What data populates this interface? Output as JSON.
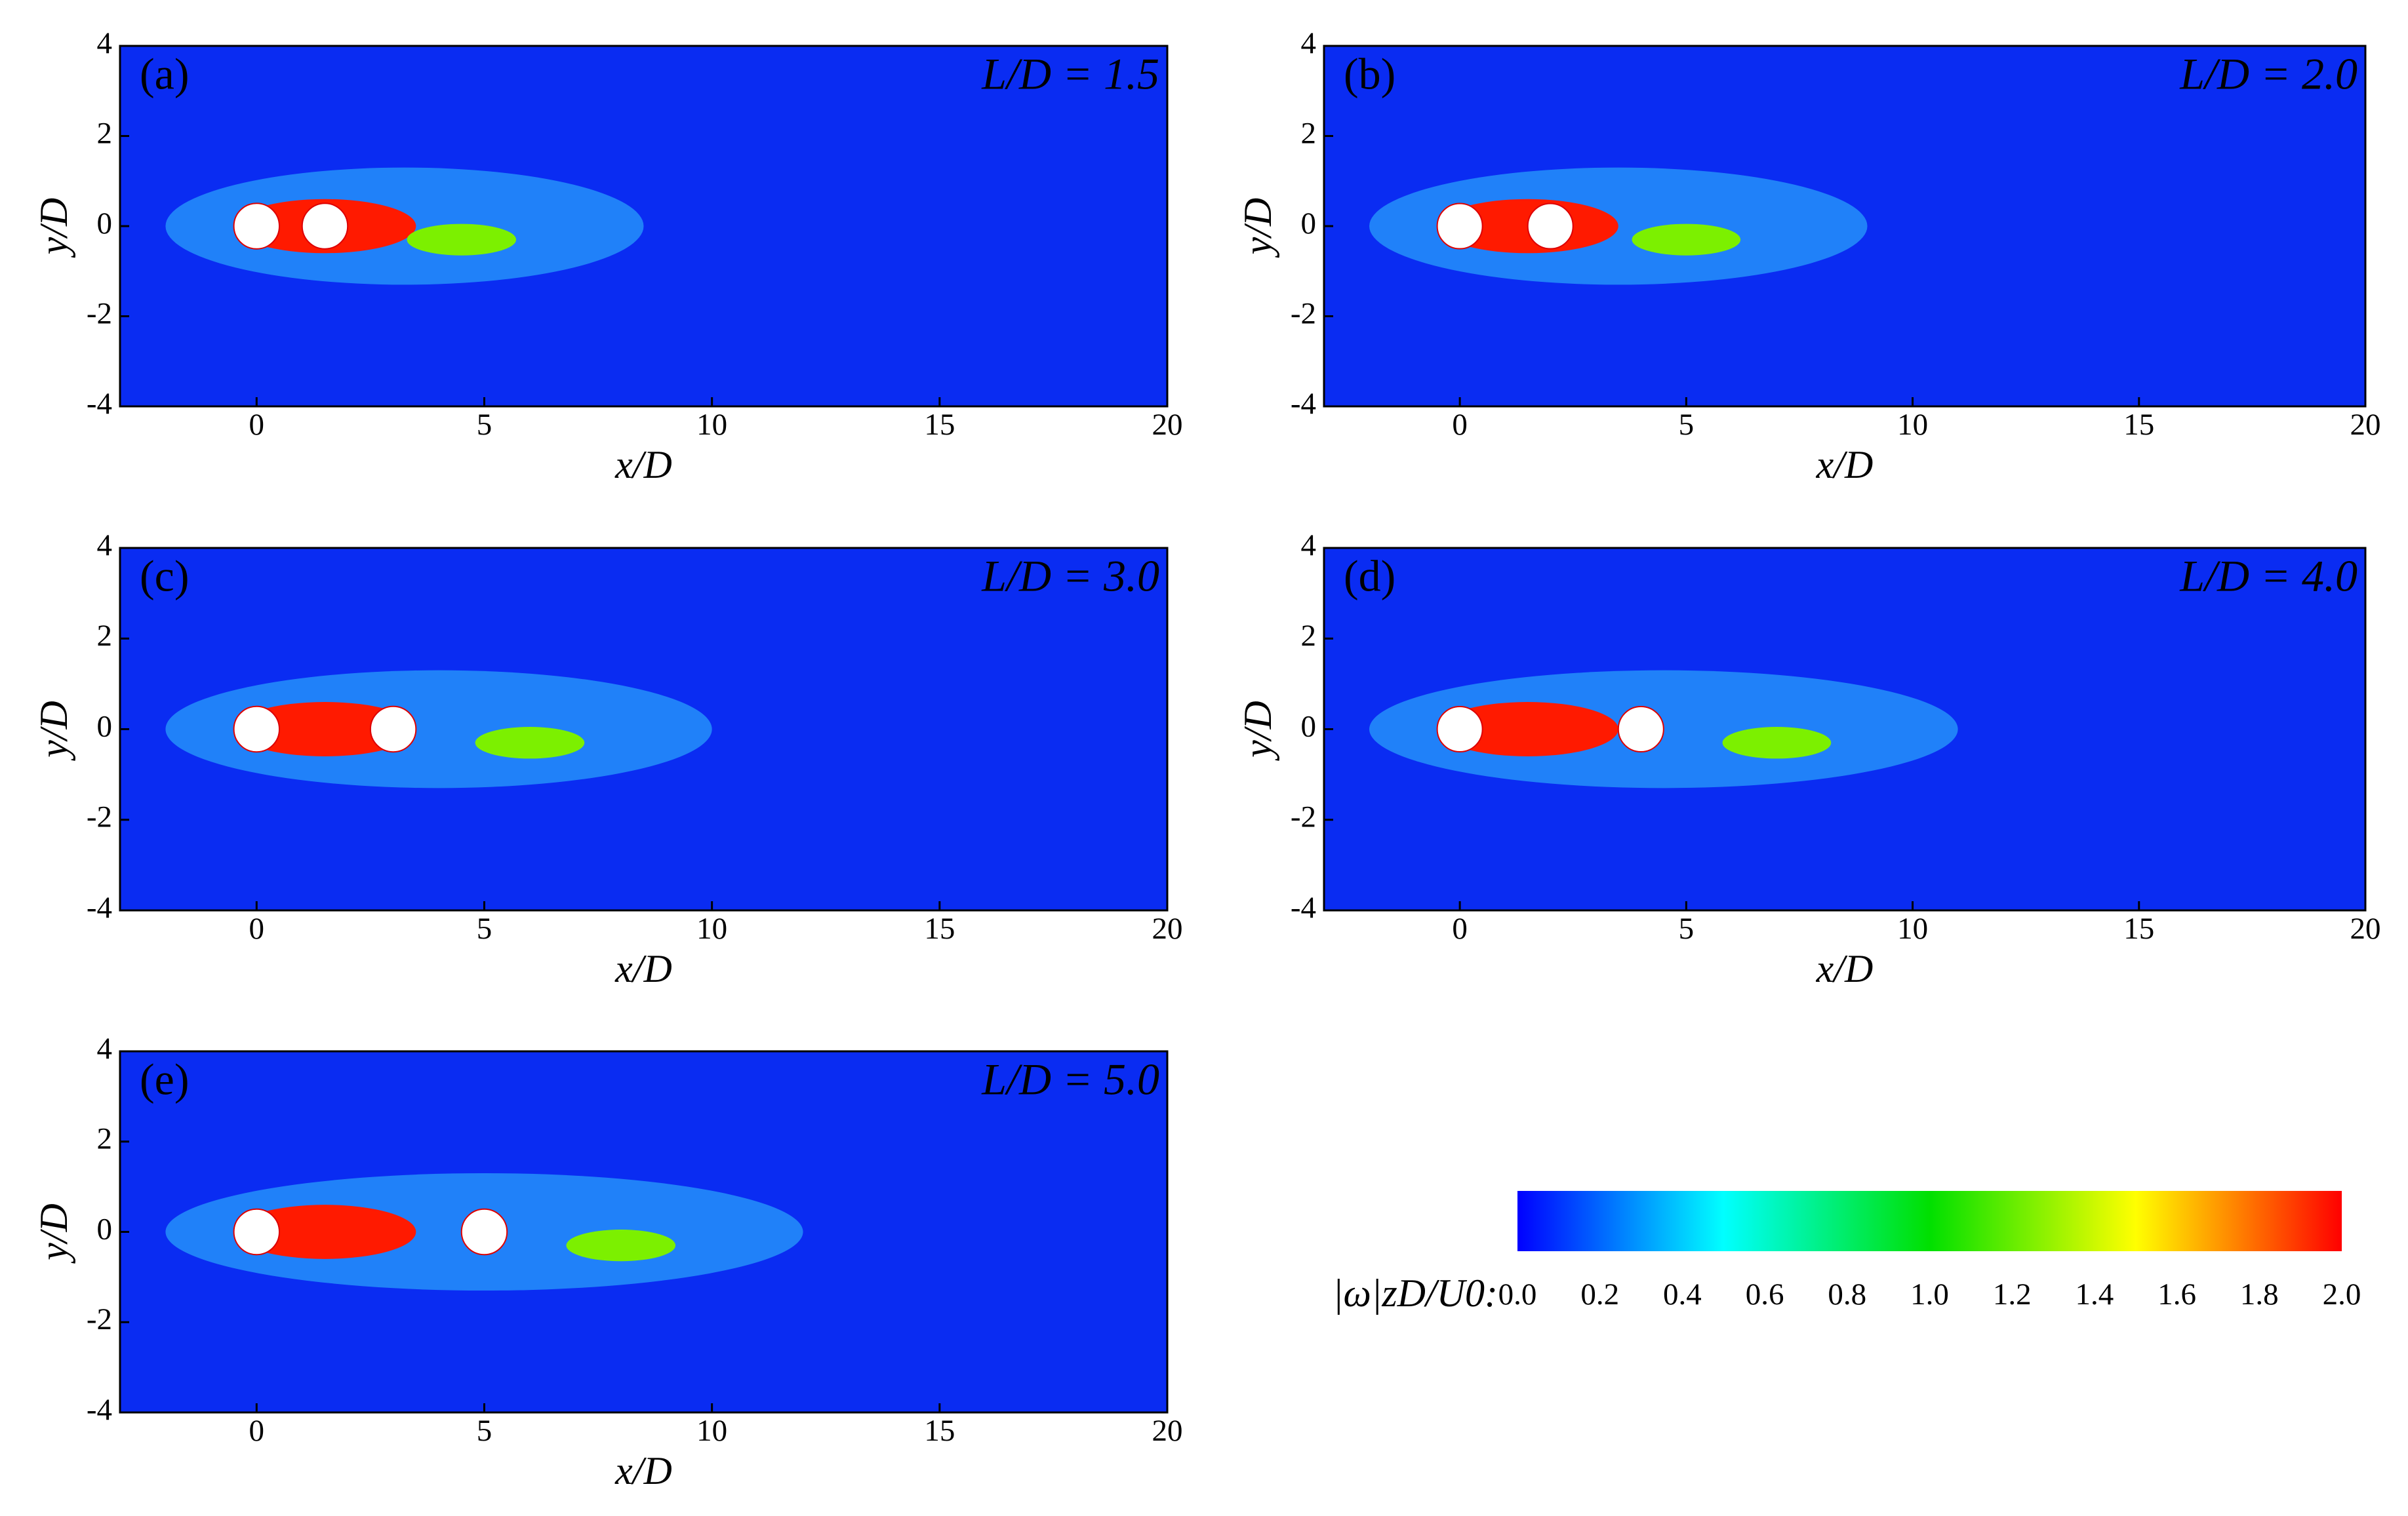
{
  "chart_data": [
    {
      "type": "contour",
      "panel_label": "(a)",
      "annotation": "L/D = 1.5",
      "xlabel": "x/D",
      "ylabel": "y/D",
      "xlim": [
        -3,
        20
      ],
      "ylim": [
        -4,
        4
      ],
      "xticks": [
        0,
        5,
        10,
        15,
        20
      ],
      "yticks": [
        -4,
        -2,
        0,
        2,
        4
      ],
      "cylinders": [
        0,
        1.5
      ],
      "background": "#0a2cf2"
    },
    {
      "type": "contour",
      "panel_label": "(b)",
      "annotation": "L/D = 2.0",
      "xlabel": "x/D",
      "ylabel": "y/D",
      "xlim": [
        -3,
        20
      ],
      "ylim": [
        -4,
        4
      ],
      "xticks": [
        0,
        5,
        10,
        15,
        20
      ],
      "yticks": [
        -4,
        -2,
        0,
        2,
        4
      ],
      "cylinders": [
        0,
        2
      ],
      "background": "#0a2cf2"
    },
    {
      "type": "contour",
      "panel_label": "(c)",
      "annotation": "L/D = 3.0",
      "xlabel": "x/D",
      "ylabel": "y/D",
      "xlim": [
        -3,
        20
      ],
      "ylim": [
        -4,
        4
      ],
      "xticks": [
        0,
        5,
        10,
        15,
        20
      ],
      "yticks": [
        -4,
        -2,
        0,
        2,
        4
      ],
      "cylinders": [
        0,
        3
      ],
      "background": "#0a2cf2"
    },
    {
      "type": "contour",
      "panel_label": "(d)",
      "annotation": "L/D = 4.0",
      "xlabel": "x/D",
      "ylabel": "y/D",
      "xlim": [
        -3,
        20
      ],
      "ylim": [
        -4,
        4
      ],
      "xticks": [
        0,
        5,
        10,
        15,
        20
      ],
      "yticks": [
        -4,
        -2,
        0,
        2,
        4
      ],
      "cylinders": [
        0,
        4
      ],
      "background": "#0a2cf2"
    },
    {
      "type": "contour",
      "panel_label": "(e)",
      "annotation": "L/D = 5.0",
      "xlabel": "x/D",
      "ylabel": "y/D",
      "xlim": [
        -3,
        20
      ],
      "ylim": [
        -4,
        4
      ],
      "xticks": [
        0,
        5,
        10,
        15,
        20
      ],
      "yticks": [
        -4,
        -2,
        0,
        2,
        4
      ],
      "cylinders": [
        0,
        5
      ],
      "background": "#0a2cf2"
    },
    {
      "type": "colorbar",
      "label": "|ω|zD/U0:",
      "xlim": [
        0,
        2
      ],
      "xticks": [
        {
          "value": 0,
          "label": "0.0"
        },
        {
          "value": 0.2,
          "label": "0.2"
        },
        {
          "value": 0.4,
          "label": "0.4"
        },
        {
          "value": 0.6,
          "label": "0.6"
        },
        {
          "value": 0.8,
          "label": "0.8"
        },
        {
          "value": 1,
          "label": "1.0"
        },
        {
          "value": 1.2,
          "label": "1.2"
        },
        {
          "value": 1.4,
          "label": "1.4"
        },
        {
          "value": 1.6,
          "label": "1.6"
        },
        {
          "value": 1.8,
          "label": "1.8"
        },
        {
          "value": 2,
          "label": "2.0"
        }
      ],
      "colors": [
        "#0000ff",
        "#00ffff",
        "#00e000",
        "#ffff00",
        "#ff0000"
      ]
    }
  ]
}
